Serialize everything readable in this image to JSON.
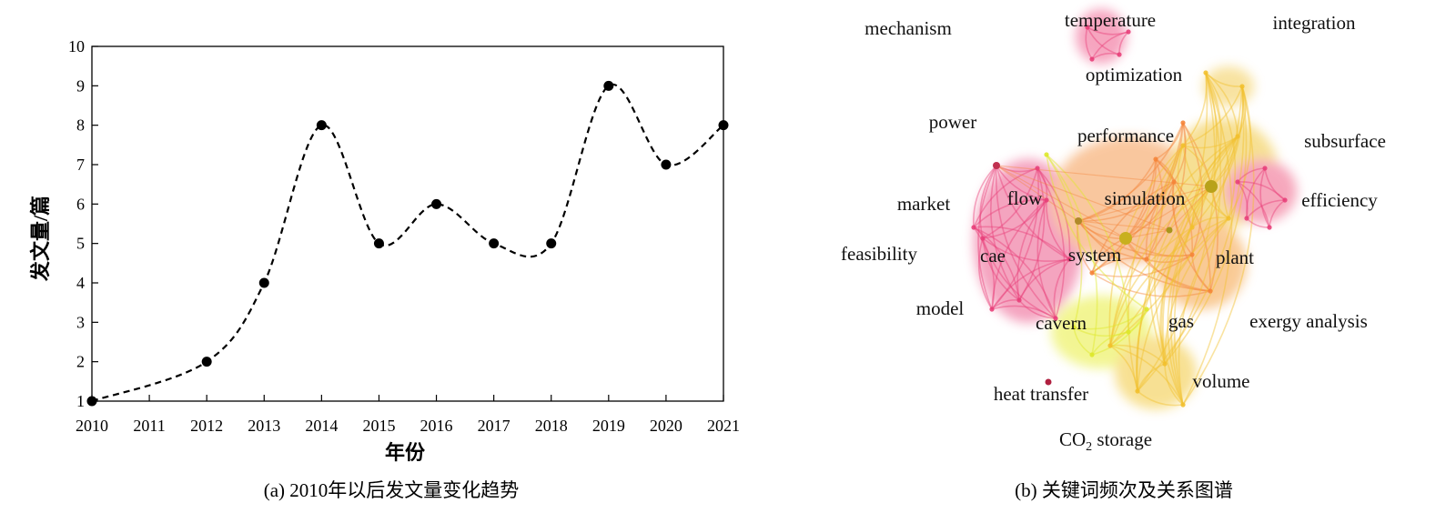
{
  "chart_data": [
    {
      "type": "line",
      "style": "dashed smoothed line with circular markers",
      "caption": "(a)  2010年以后发文量变化趋势",
      "xlabel": "年份",
      "ylabel": "发文量/篇",
      "x": [
        2010,
        2011,
        2012,
        2013,
        2014,
        2015,
        2016,
        2017,
        2018,
        2019,
        2020,
        2021
      ],
      "x_tick_labels": [
        "2010",
        "2011",
        "2012",
        "2013",
        "2014",
        "2015",
        "2016",
        "2017",
        "2018",
        "2019",
        "2020",
        "2021"
      ],
      "points_x": [
        2010,
        2012,
        2013,
        2014,
        2015,
        2016,
        2017,
        2018,
        2019,
        2020,
        2021
      ],
      "points_y": [
        1,
        2,
        4,
        8,
        5,
        6,
        5,
        5,
        9,
        7,
        8
      ],
      "xlim": [
        2010,
        2021
      ],
      "ylim": [
        1,
        10
      ],
      "y_ticks": [
        1,
        2,
        3,
        4,
        5,
        6,
        7,
        8,
        9,
        10
      ],
      "grid": false,
      "line_color": "#000000"
    },
    {
      "type": "keyword co-occurrence network",
      "caption": "(b)  关键词频次及关系图谱",
      "keywords": [
        "temperature",
        "mechanism",
        "integration",
        "optimization",
        "power",
        "performance",
        "subsurface",
        "market",
        "flow",
        "simulation",
        "efficiency",
        "feasibility",
        "cae",
        "system",
        "plant",
        "model",
        "cavern",
        "gas",
        "exergy analysis",
        "volume",
        "heat transfer"
      ],
      "co2_label": {
        "prefix": "CO",
        "subscript": "2",
        "suffix": " storage"
      },
      "cluster_colors": [
        "#e8407a",
        "#f5853a",
        "#f2c02e",
        "#dde82a"
      ]
    }
  ]
}
